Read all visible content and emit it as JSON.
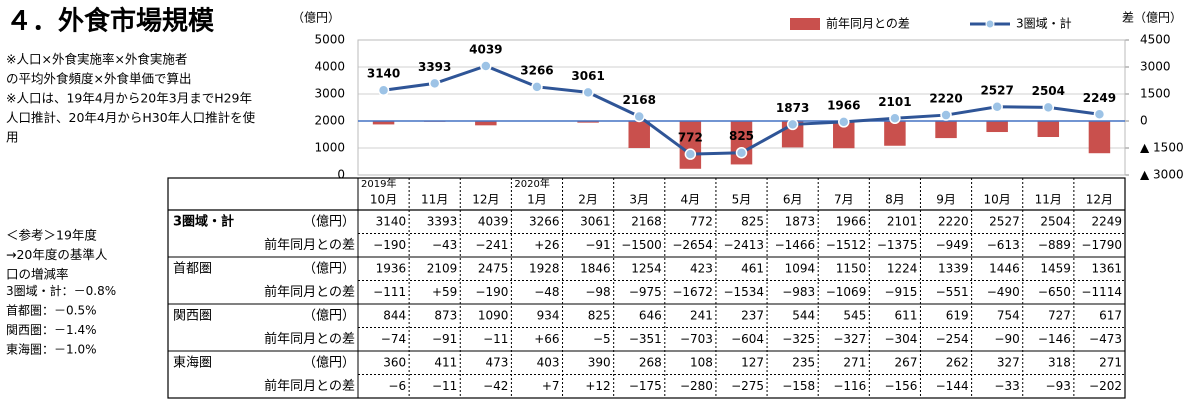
{
  "header": {
    "title": "４．外食市場規模",
    "notes": [
      "※人口×外食実施率×外食実施者",
      "の平均外食頻度×外食単価で算出",
      "※人口は、19年4月から20年3月までH29年",
      "人口推計、20年4月からH30年人口推計を使",
      "用"
    ],
    "reference": [
      "＜参考＞19年度",
      "→20年度の基準人",
      "口の増減率",
      "3圏域・計：－0.8%",
      "首都圏：－0.5%",
      "関西圏：－1.4%",
      "東海圏：－1.0%"
    ]
  },
  "chart_data": {
    "type": "bar_line",
    "y_label": "（億円）",
    "y2_label": "差（億円）",
    "categories": [
      "10月",
      "11月",
      "12月",
      "1月",
      "2月",
      "3月",
      "4月",
      "5月",
      "6月",
      "7月",
      "8月",
      "9月",
      "10月",
      "11月",
      "12月"
    ],
    "group_labels": [
      "2019年",
      null,
      null,
      "2020年",
      null,
      null,
      null,
      null,
      null,
      null,
      null,
      null,
      null,
      null,
      null
    ],
    "series": [
      {
        "name": "前年同月との差",
        "type": "bar",
        "axis": "y2",
        "color": "#c9504d",
        "values": [
          -190,
          -43,
          -241,
          26,
          -91,
          -1500,
          -2654,
          -2413,
          -1466,
          -1512,
          -1375,
          -949,
          -613,
          -889,
          -1790
        ],
        "value_labels": [
          "−190",
          "−43",
          "−241",
          "+26",
          "−91",
          "−1500",
          "−2654",
          "−2413",
          "−1466",
          "−1512",
          "−1375",
          "−949",
          "−613",
          "−889",
          "−1790"
        ]
      },
      {
        "name": "3圏域・計",
        "type": "line",
        "axis": "y",
        "color": "#2f5597",
        "marker_color": "#9dc3e6",
        "values": [
          3140,
          3393,
          4039,
          3266,
          3061,
          2168,
          772,
          825,
          1873,
          1966,
          2101,
          2220,
          2527,
          2504,
          2249
        ]
      }
    ],
    "ylim": [
      0,
      5000
    ],
    "yticks": [
      0,
      1000,
      2000,
      3000,
      4000,
      5000
    ],
    "y2lim": [
      -3000,
      4500
    ],
    "y2ticks": [
      {
        "value": -3000,
        "label": "▲ 3000"
      },
      {
        "value": -1500,
        "label": "▲ 1500"
      },
      0,
      1500,
      3000,
      4500
    ],
    "grid": true,
    "legend": "top"
  },
  "table": {
    "rows": [
      {
        "region": "3圏域・計",
        "unit": "（億円）",
        "diff_label": "前年同月との差"
      },
      {
        "region": "首都圏",
        "unit": "（億円）",
        "diff_label": "前年同月との差",
        "values": [
          1936,
          2109,
          2475,
          1928,
          1846,
          1254,
          423,
          461,
          1094,
          1150,
          1224,
          1339,
          1446,
          1459,
          1361
        ],
        "diff_values": [
          "−111",
          "+59",
          "−190",
          "−48",
          "−98",
          "−975",
          "−1672",
          "−1534",
          "−983",
          "−1069",
          "−915",
          "−551",
          "−490",
          "−650",
          "−1114"
        ]
      },
      {
        "region": "関西圏",
        "unit": "（億円）",
        "diff_label": "前年同月との差",
        "values": [
          844,
          873,
          1090,
          934,
          825,
          646,
          241,
          237,
          544,
          545,
          611,
          619,
          754,
          727,
          617
        ],
        "diff_values": [
          "−74",
          "−91",
          "−11",
          "+66",
          "−5",
          "−351",
          "−703",
          "−604",
          "−325",
          "−327",
          "−304",
          "−254",
          "−90",
          "−146",
          "−473"
        ]
      },
      {
        "region": "東海圏",
        "unit": "（億円）",
        "diff_label": "前年同月との差",
        "values": [
          360,
          411,
          473,
          403,
          390,
          268,
          108,
          127,
          235,
          271,
          267,
          262,
          327,
          318,
          271
        ],
        "diff_values": [
          "−6",
          "−11",
          "−42",
          "+7",
          "+12",
          "−175",
          "−280",
          "−275",
          "−158",
          "−116",
          "−156",
          "−144",
          "−33",
          "−93",
          "−202"
        ]
      }
    ]
  }
}
